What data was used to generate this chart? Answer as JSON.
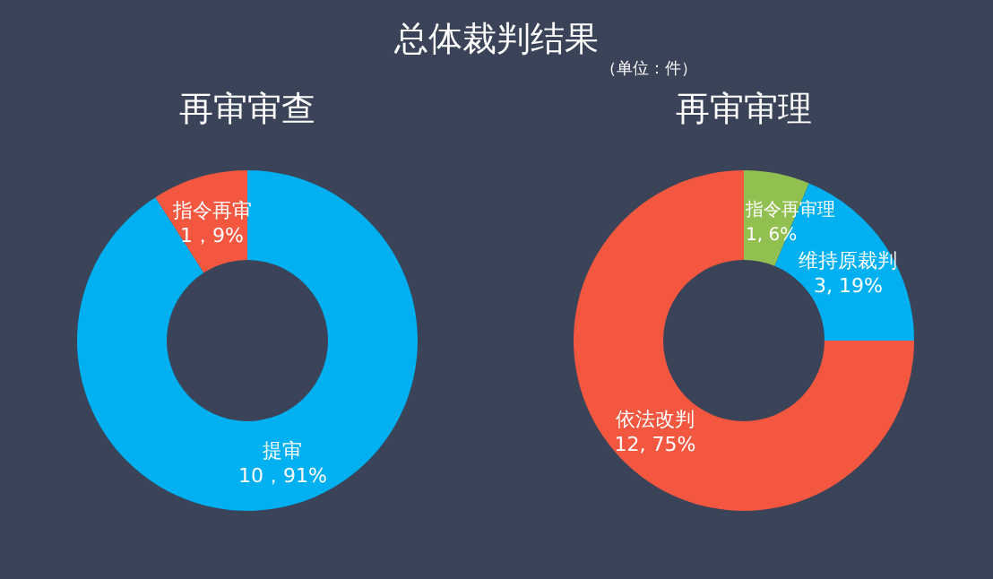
{
  "chart_data": [
    {
      "type": "other",
      "title": "总体裁判结果",
      "subtitle": "（单位：件）"
    },
    {
      "type": "donut",
      "title": "再审审查",
      "categories": [
        "提审",
        "指令再审"
      ],
      "values": [
        10,
        1
      ],
      "colors": [
        "#00b0f0",
        "#f4573f"
      ],
      "value_labels": [
        "10，91%",
        "1，9%"
      ],
      "data_labels": true
    },
    {
      "type": "donut",
      "title": "再审审理",
      "categories": [
        "指令再审理",
        "维持原裁判",
        "依法改判"
      ],
      "values": [
        1,
        3,
        12
      ],
      "colors": [
        "#92c050",
        "#00b0f0",
        "#f4573f"
      ],
      "value_labels": [
        "1, 6%",
        "3, 19%",
        "12, 75%"
      ],
      "data_labels": true
    }
  ]
}
